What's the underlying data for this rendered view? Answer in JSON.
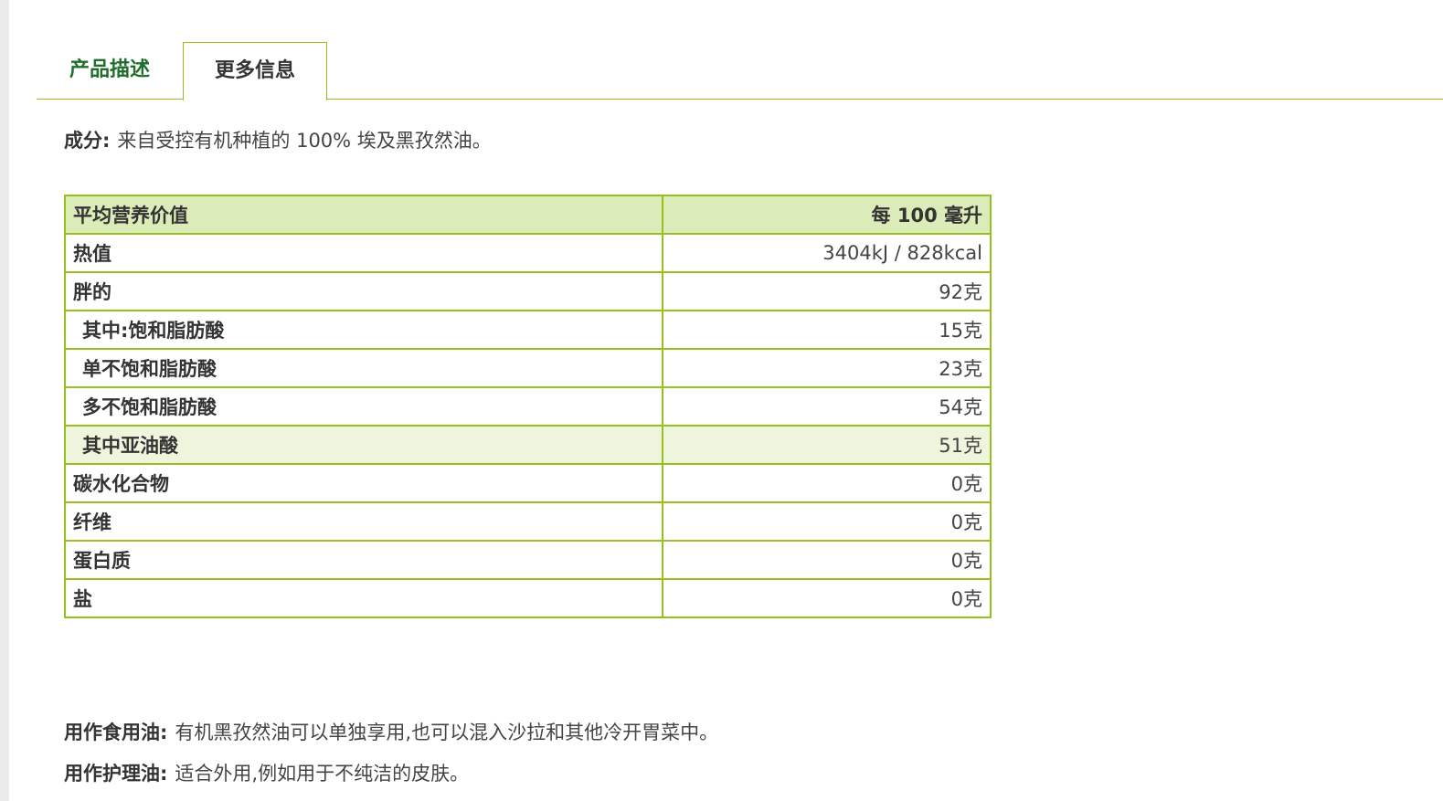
{
  "tabs": [
    {
      "label": "产品描述"
    },
    {
      "label": "更多信息"
    }
  ],
  "ingredients": {
    "label": "成分:",
    "text": "来自受控有机种植的 100% 埃及黑孜然油。"
  },
  "nutrition": {
    "header_name": "平均营养价值",
    "header_value": "每 100 毫升",
    "rows": [
      {
        "name": "热值",
        "value": "3404kJ / 828kcal"
      },
      {
        "name": "胖的",
        "value": "92克"
      },
      {
        "name": "其中:饱和脂肪酸",
        "value": "15克"
      },
      {
        "name": "单不饱和脂肪酸",
        "value": "23克"
      },
      {
        "name": "多不饱和脂肪酸",
        "value": "54克"
      },
      {
        "name": "其中亚油酸",
        "value": "51克"
      },
      {
        "name": "碳水化合物",
        "value": "0克"
      },
      {
        "name": "纤维",
        "value": "0克"
      },
      {
        "name": "蛋白质",
        "value": "0克"
      },
      {
        "name": "盐",
        "value": "0克"
      }
    ]
  },
  "usage": [
    {
      "label": "用作食用油:",
      "text": "有机黑孜然油可以单独享用,也可以混入沙拉和其他冷开胃菜中。"
    },
    {
      "label": "用作护理油:",
      "text": "适合外用,例如用于不纯洁的皮肤。"
    }
  ],
  "colors": {
    "accent_green": "#95c11f",
    "tab_text_green": "#1f6e2b",
    "header_bg": "#dcecb8",
    "highlight_row_bg": "#eef5dc"
  }
}
